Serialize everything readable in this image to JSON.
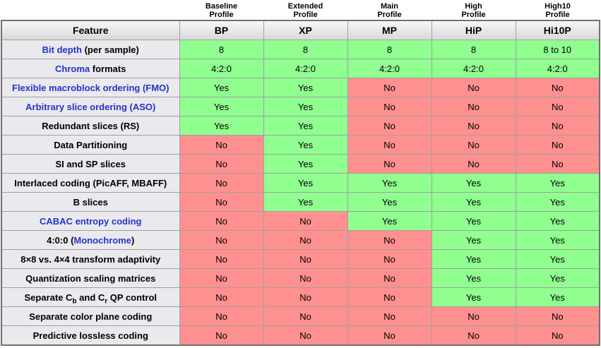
{
  "colors": {
    "yes_bg": "#90ff90",
    "no_bg": "#ff9090",
    "feature_bg": "#e9e9ee",
    "header_gradient_top": "#f7f7f7",
    "header_gradient_bottom": "#d9d9d9",
    "link_blue": "#2433c9",
    "inner_border": "#a0a0a0",
    "outer_border": "#717171"
  },
  "profiles_header": {
    "feature_label": "Feature",
    "columns": [
      {
        "top": [
          "Baseline",
          "Profile"
        ],
        "abbr": "BP"
      },
      {
        "top": [
          "Extended",
          "Profile"
        ],
        "abbr": "XP"
      },
      {
        "top": [
          "Main",
          "Profile"
        ],
        "abbr": "MP"
      },
      {
        "top": [
          "High",
          "Profile"
        ],
        "abbr": "HiP"
      },
      {
        "top": [
          "High10",
          "Profile"
        ],
        "abbr": "Hi10P"
      }
    ]
  },
  "rows": [
    {
      "feature": [
        {
          "t": "Bit depth",
          "link": true
        },
        {
          "t": " (per sample)"
        }
      ],
      "values": [
        "8",
        "8",
        "8",
        "8",
        "8 to 10"
      ],
      "states": [
        "yes",
        "yes",
        "yes",
        "yes",
        "yes"
      ]
    },
    {
      "feature": [
        {
          "t": "Chroma",
          "link": true
        },
        {
          "t": " formats"
        }
      ],
      "values": [
        "4:2:0",
        "4:2:0",
        "4:2:0",
        "4:2:0",
        "4:2:0"
      ],
      "states": [
        "yes",
        "yes",
        "yes",
        "yes",
        "yes"
      ]
    },
    {
      "feature": [
        {
          "t": "Flexible macroblock ordering (FMO)",
          "link": true
        }
      ],
      "values": [
        "Yes",
        "Yes",
        "No",
        "No",
        "No"
      ],
      "states": [
        "yes",
        "yes",
        "no",
        "no",
        "no"
      ]
    },
    {
      "feature": [
        {
          "t": "Arbitrary slice ordering (ASO)",
          "link": true
        }
      ],
      "values": [
        "Yes",
        "Yes",
        "No",
        "No",
        "No"
      ],
      "states": [
        "yes",
        "yes",
        "no",
        "no",
        "no"
      ]
    },
    {
      "feature": [
        {
          "t": "Redundant slices (RS)"
        }
      ],
      "values": [
        "Yes",
        "Yes",
        "No",
        "No",
        "No"
      ],
      "states": [
        "yes",
        "yes",
        "no",
        "no",
        "no"
      ]
    },
    {
      "feature": [
        {
          "t": "Data Partitioning"
        }
      ],
      "values": [
        "No",
        "Yes",
        "No",
        "No",
        "No"
      ],
      "states": [
        "no",
        "yes",
        "no",
        "no",
        "no"
      ]
    },
    {
      "feature": [
        {
          "t": "SI and SP slices"
        }
      ],
      "values": [
        "No",
        "Yes",
        "No",
        "No",
        "No"
      ],
      "states": [
        "no",
        "yes",
        "no",
        "no",
        "no"
      ]
    },
    {
      "feature": [
        {
          "t": "Interlaced coding (PicAFF, MBAFF)"
        }
      ],
      "values": [
        "No",
        "Yes",
        "Yes",
        "Yes",
        "Yes"
      ],
      "states": [
        "no",
        "yes",
        "yes",
        "yes",
        "yes"
      ]
    },
    {
      "feature": [
        {
          "t": "B slices"
        }
      ],
      "values": [
        "No",
        "Yes",
        "Yes",
        "Yes",
        "Yes"
      ],
      "states": [
        "no",
        "yes",
        "yes",
        "yes",
        "yes"
      ]
    },
    {
      "feature": [
        {
          "t": "CABAC entropy coding",
          "link": true
        }
      ],
      "values": [
        "No",
        "No",
        "Yes",
        "Yes",
        "Yes"
      ],
      "states": [
        "no",
        "no",
        "yes",
        "yes",
        "yes"
      ]
    },
    {
      "feature": [
        {
          "t": "4:0:0 ("
        },
        {
          "t": "Monochrome",
          "link": true
        },
        {
          "t": ")"
        }
      ],
      "values": [
        "No",
        "No",
        "No",
        "Yes",
        "Yes"
      ],
      "states": [
        "no",
        "no",
        "no",
        "yes",
        "yes"
      ]
    },
    {
      "feature": [
        {
          "t": "8×8 vs. 4×4 transform adaptivity"
        }
      ],
      "values": [
        "No",
        "No",
        "No",
        "Yes",
        "Yes"
      ],
      "states": [
        "no",
        "no",
        "no",
        "yes",
        "yes"
      ]
    },
    {
      "feature": [
        {
          "t": "Quantization scaling matrices"
        }
      ],
      "values": [
        "No",
        "No",
        "No",
        "Yes",
        "Yes"
      ],
      "states": [
        "no",
        "no",
        "no",
        "yes",
        "yes"
      ]
    },
    {
      "feature": [
        {
          "t": "Separate C"
        },
        {
          "t": "b",
          "sub": true
        },
        {
          "t": " and C"
        },
        {
          "t": "r",
          "sub": true
        },
        {
          "t": " QP control"
        }
      ],
      "values": [
        "No",
        "No",
        "No",
        "Yes",
        "Yes"
      ],
      "states": [
        "no",
        "no",
        "no",
        "yes",
        "yes"
      ]
    },
    {
      "feature": [
        {
          "t": "Separate color plane coding"
        }
      ],
      "values": [
        "No",
        "No",
        "No",
        "No",
        "No"
      ],
      "states": [
        "no",
        "no",
        "no",
        "no",
        "no"
      ]
    },
    {
      "feature": [
        {
          "t": "Predictive lossless coding"
        }
      ],
      "values": [
        "No",
        "No",
        "No",
        "No",
        "No"
      ],
      "states": [
        "no",
        "no",
        "no",
        "no",
        "no"
      ]
    }
  ]
}
